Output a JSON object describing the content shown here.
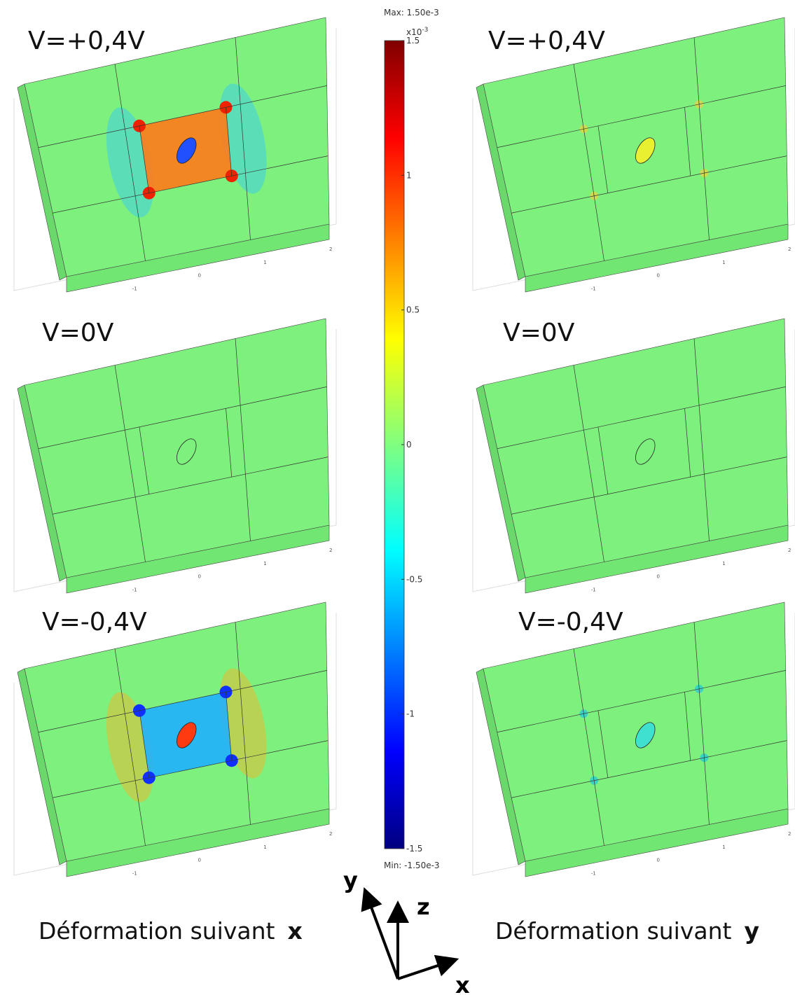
{
  "panels": [
    {
      "label": "V=+0,4V"
    },
    {
      "label": "V=+0,4V"
    },
    {
      "label": "V=0V"
    },
    {
      "label": "V=0V"
    },
    {
      "label": "V=-0,4V"
    },
    {
      "label": "V=-0,4V"
    }
  ],
  "axis_ticks": [
    -2,
    -1,
    0,
    1,
    2
  ],
  "colorbar": {
    "max_label": "Max: 1.50e-3",
    "min_label": "Min: -1.50e-3",
    "exponent": "x10",
    "exponent_power": "-3",
    "lim": [
      -1.5,
      1.5
    ],
    "ticks": [
      1.5,
      1,
      0.5,
      0,
      -0.5,
      -1,
      -1.5
    ]
  },
  "captions": {
    "left": "Déformation suivant",
    "left_axis": "x",
    "right": "Déformation suivant",
    "right_axis": "y"
  },
  "axes": {
    "y": "y",
    "z": "z",
    "x": "x"
  }
}
